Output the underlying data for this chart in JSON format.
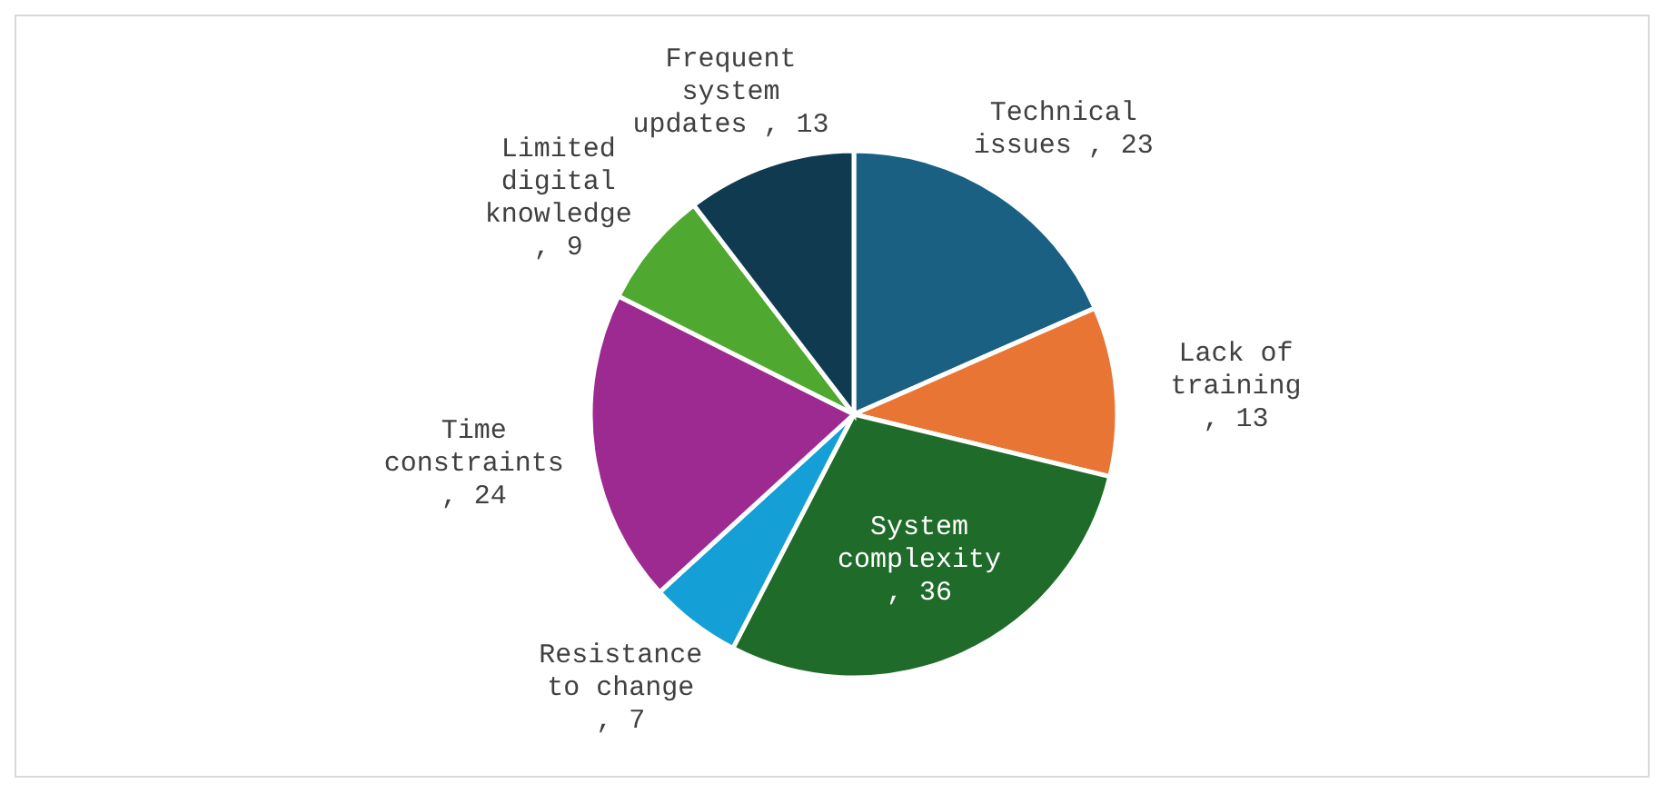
{
  "chart_data": {
    "type": "pie",
    "categories": [
      "Technical issues",
      "Lack of training",
      "System complexity",
      "Resistance to change",
      "Time constraints",
      "Limited digital knowledge",
      "Frequent system updates"
    ],
    "values": [
      23,
      13,
      36,
      7,
      24,
      9,
      13
    ],
    "value_labels": [
      ", 23",
      ", 13",
      ", 36",
      ", 7",
      ", 24",
      ", 9",
      ", 13"
    ],
    "colors": [
      "#1a6082",
      "#e97534",
      "#1f6b29",
      "#149fd6",
      "#9d2a90",
      "#4fa82f",
      "#0f3a50"
    ]
  }
}
